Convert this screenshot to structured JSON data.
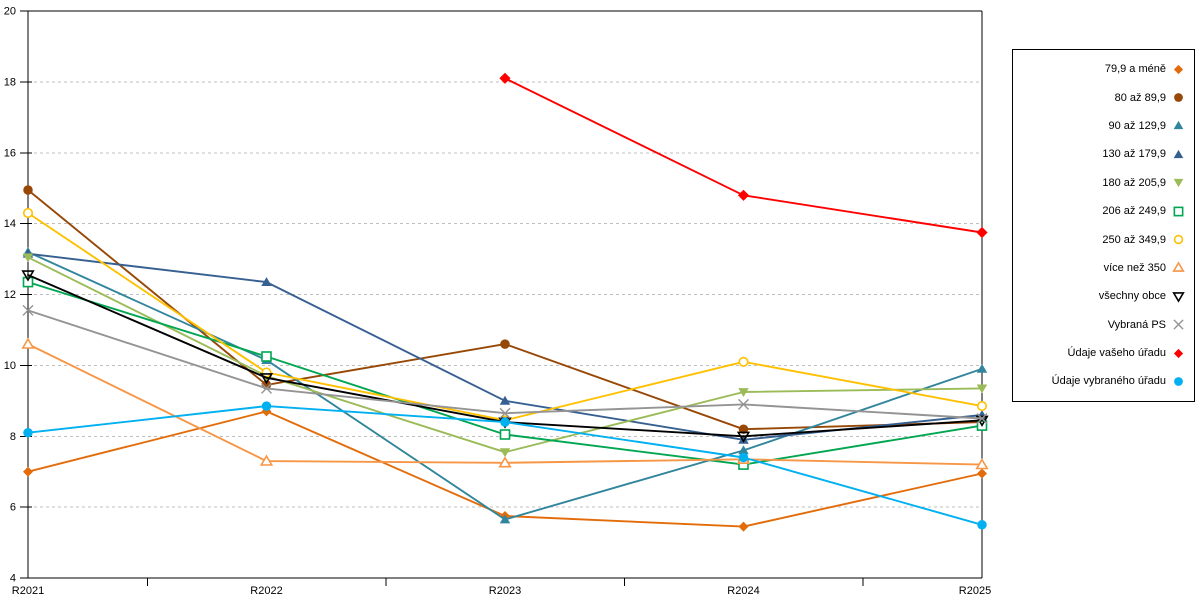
{
  "chart_data": {
    "type": "line",
    "title": "",
    "xlabel": "",
    "ylabel": "",
    "categories": [
      "R2021",
      "R2022",
      "R2023",
      "R2024",
      "R2025"
    ],
    "ylim": [
      4,
      20
    ],
    "ytick_step": 2,
    "grid": "horizontal-dashed",
    "legend_position": "right",
    "series": [
      {
        "name": "79,9 a méně",
        "marker": "diamond-filled",
        "color": "#E36C0A",
        "values": [
          7.0,
          8.7,
          5.75,
          5.45,
          6.95
        ]
      },
      {
        "name": "80 až 89,9",
        "marker": "circle-filled",
        "color": "#974806",
        "values": [
          14.95,
          9.45,
          10.6,
          8.2,
          8.4
        ]
      },
      {
        "name": "90 až 129,9",
        "marker": "triangle-up-filled",
        "color": "#31859C",
        "values": [
          13.2,
          10.15,
          5.65,
          7.6,
          9.9
        ]
      },
      {
        "name": "130 až 179,9",
        "marker": "triangle-up-filled",
        "color": "#376092",
        "values": [
          13.15,
          12.35,
          9.0,
          7.9,
          8.6
        ]
      },
      {
        "name": "180 až 205,9",
        "marker": "triangle-down-filled",
        "color": "#9BBB59",
        "values": [
          13.05,
          9.7,
          7.55,
          9.25,
          9.35
        ]
      },
      {
        "name": "206 až 249,9",
        "marker": "square-open",
        "color": "#00A651",
        "values": [
          12.35,
          10.25,
          8.05,
          7.2,
          8.3
        ]
      },
      {
        "name": "250 až 349,9",
        "marker": "circle-open",
        "color": "#FFC000",
        "values": [
          14.3,
          9.8,
          8.45,
          10.1,
          8.85
        ]
      },
      {
        "name": "více než 350",
        "marker": "triangle-up-open",
        "color": "#F79646",
        "values": [
          10.6,
          7.3,
          7.25,
          7.35,
          7.2
        ]
      },
      {
        "name": "všechny obce",
        "marker": "triangle-down-open",
        "color": "#000000",
        "values": [
          12.55,
          9.65,
          8.4,
          8.0,
          8.45
        ]
      },
      {
        "name": "Vybraná PS",
        "marker": "x",
        "color": "#949494",
        "values": [
          11.55,
          9.35,
          8.65,
          8.9,
          8.5
        ]
      },
      {
        "name": "Údaje vašeho úřadu",
        "marker": "diamond-filled",
        "color": "#FF0000",
        "values": [
          null,
          null,
          18.1,
          14.8,
          13.75
        ]
      },
      {
        "name": "Údaje vybraného úřadu",
        "marker": "circle-filled",
        "color": "#00B0F0",
        "values": [
          8.1,
          8.85,
          8.4,
          7.4,
          5.5
        ]
      }
    ],
    "axis_color": "#000000",
    "gridline_color": "#BFBFBF"
  }
}
